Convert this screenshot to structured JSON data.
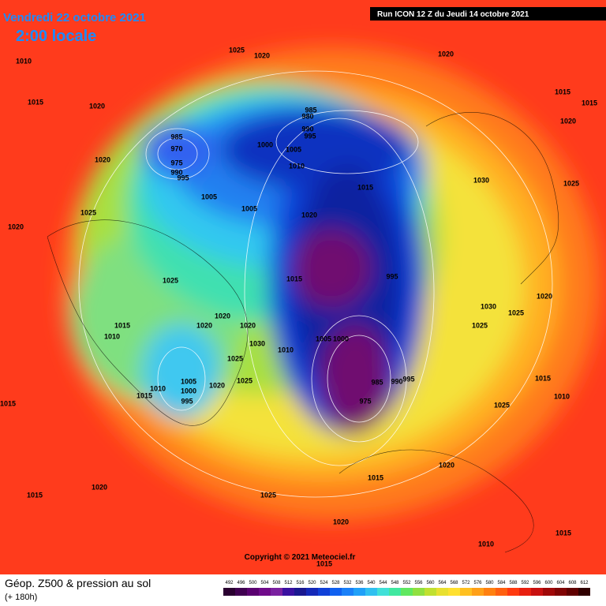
{
  "header": {
    "date": "Vendredi 22 octobre 2021",
    "time": "2:00 locale",
    "run": "Run ICON 12 Z du Jeudi 14 octobre 2021"
  },
  "copyright": "Copyright © 2021 Meteociel.fr",
  "footer": {
    "title": "Géop. Z500 & pression au sol",
    "subtitle": "(+ 180h)"
  },
  "scale": [
    492,
    496,
    500,
    504,
    508,
    512,
    516,
    520,
    524,
    528,
    532,
    536,
    540,
    544,
    548,
    552,
    556,
    560,
    564,
    568,
    572,
    576,
    580,
    584,
    588,
    592,
    596,
    600,
    604,
    608,
    612
  ],
  "isobar_labels": [
    "1010",
    "1015",
    "1020",
    "1025",
    "1020",
    "1020",
    "1015",
    "1015",
    "1020",
    "985",
    "970",
    "975",
    "990",
    "995",
    "1020",
    "985",
    "980",
    "990",
    "995",
    "1000",
    "1005",
    "1010",
    "1015",
    "1030",
    "1025",
    "1005",
    "1005",
    "1020",
    "1020",
    "1025",
    "1015",
    "995",
    "1025",
    "1015",
    "1010",
    "1020",
    "1020",
    "1020",
    "1030",
    "1010",
    "1005",
    "1000",
    "1025",
    "1005",
    "1000",
    "995",
    "1015",
    "1010",
    "1020",
    "1025",
    "985",
    "990",
    "995",
    "975",
    "1025",
    "1020",
    "1025",
    "1025",
    "1030",
    "1015",
    "1020",
    "1025",
    "1015",
    "1020",
    "1020",
    "1015",
    "1010",
    "1015",
    "1015",
    "1010",
    "1015"
  ]
}
